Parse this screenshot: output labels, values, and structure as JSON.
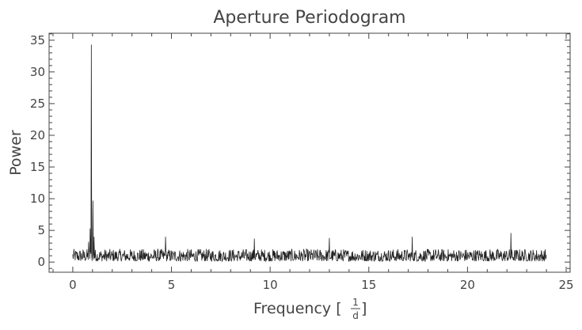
{
  "chart_data": {
    "type": "line",
    "title": "Aperture Periodogram",
    "xlabel": "Frequency [",
    "xlabel_unit_num": "1",
    "xlabel_unit_den": "d",
    "xlabel_close": "]",
    "ylabel": "Power",
    "xlim": [
      -1.2,
      25.2
    ],
    "ylim": [
      -1.6,
      36.1
    ],
    "xticks": [
      0,
      5,
      10,
      15,
      20,
      25
    ],
    "yticks": [
      0,
      5,
      10,
      15,
      20,
      25,
      30,
      35
    ],
    "x_range": [
      0.0,
      24.0
    ],
    "baseline_level": 1.3,
    "peaks": [
      {
        "x": 0.8,
        "y": 3.2
      },
      {
        "x": 0.88,
        "y": 5.3
      },
      {
        "x": 0.95,
        "y": 34.3
      },
      {
        "x": 1.02,
        "y": 9.7
      },
      {
        "x": 1.08,
        "y": 4.0
      },
      {
        "x": 4.7,
        "y": 4.0
      },
      {
        "x": 9.2,
        "y": 3.7
      },
      {
        "x": 13.0,
        "y": 3.8
      },
      {
        "x": 17.2,
        "y": 4.0
      },
      {
        "x": 22.2,
        "y": 4.6
      }
    ],
    "line_color": "#222222",
    "grid": false,
    "legend": "none"
  }
}
